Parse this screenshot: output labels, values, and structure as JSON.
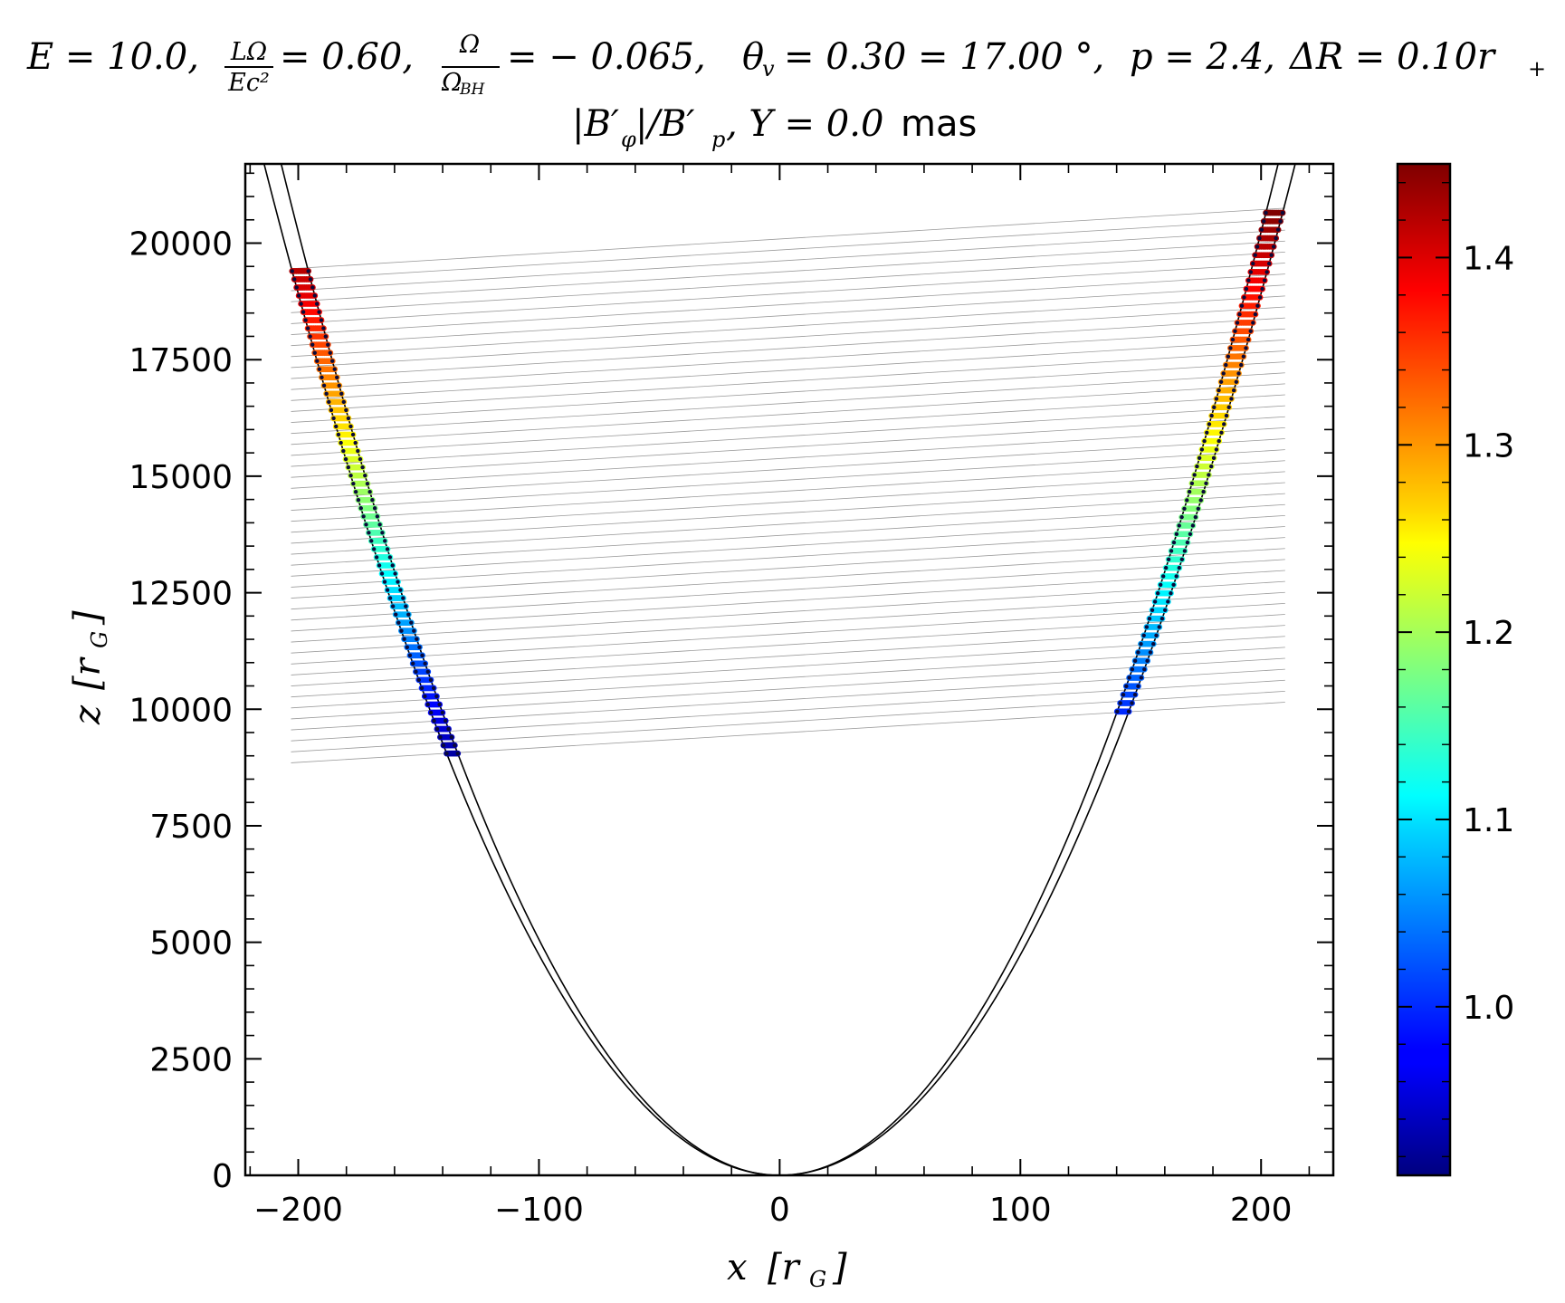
{
  "chart_data": {
    "type": "scatter",
    "title_line1": "E = 10.0,  LΩ/Ec² = 0.60,  Ω/Ω_BH = −0.065,  θ_v = 0.30 = 17.00°,  p = 2.4,  ΔR = 0.10r₊",
    "title_line1_parts": {
      "e": "E = 10.0,",
      "l_num": "LΩ",
      "l_den": "Ec²",
      "l_val": "= 0.60,",
      "o_num": "Ω",
      "o_den": "Ω",
      "o_den_sub": "BH",
      "o_val": "= − 0.065,",
      "theta": "θ",
      "theta_sub": "v",
      "theta_val": "= 0.30 = 17.00 °,",
      "p": "p = 2.4,",
      "dr": "ΔR = 0.10r",
      "dr_sub": "+"
    },
    "title_line2_parts": {
      "b_phi": "|B′",
      "b_phi_sub": "φ",
      "b_p": "|/B′",
      "b_p_sub": "p",
      "y_part": ", Y = 0.0",
      "units": " mas"
    },
    "xlabel_var": "x",
    "xlabel_unit": "[r",
    "xlabel_unit_sub": "G",
    "xlabel_close": "]",
    "ylabel_var": "z",
    "ylabel_unit": "[r",
    "ylabel_unit_sub": "G",
    "ylabel_close": "]",
    "xlim": [
      -222,
      230
    ],
    "ylim": [
      0,
      21700
    ],
    "x_ticks": [
      -200,
      -100,
      0,
      100,
      200
    ],
    "x_tick_labels": [
      "−200",
      "−100",
      "0",
      "100",
      "200"
    ],
    "y_ticks": [
      0,
      2500,
      5000,
      7500,
      10000,
      12500,
      15000,
      17500,
      20000
    ],
    "y_tick_labels": [
      "0",
      "2500",
      "5000",
      "7500",
      "10000",
      "12500",
      "15000",
      "17500",
      "20000"
    ],
    "colorbar": {
      "colormap": "jet",
      "min": 0.91,
      "max": 1.45,
      "ticks": [
        1.0,
        1.1,
        1.2,
        1.3,
        1.4
      ],
      "tick_labels": [
        "1.0",
        "1.1",
        "1.2",
        "1.3",
        "1.4"
      ]
    },
    "boundary_curves": {
      "form": "z = a * x^2",
      "outer_coefficient": 0.473,
      "inner_coefficient": 0.506
    },
    "left_branch": {
      "z_start": 9050,
      "z_end": 19400,
      "color_start": 0.93,
      "color_end": 1.42
    },
    "right_branch": {
      "z_start": 9950,
      "z_end": 20650,
      "color_start": 1.0,
      "color_end": 1.45
    },
    "sight_lines": {
      "count": 46,
      "left_x": -203,
      "right_x": 210,
      "left_z_start": 8850,
      "left_z_end": 19450,
      "right_z_start": 10150,
      "right_z_end": 20750,
      "color": "#9a9a9a"
    },
    "grid": false,
    "legend": "none"
  }
}
